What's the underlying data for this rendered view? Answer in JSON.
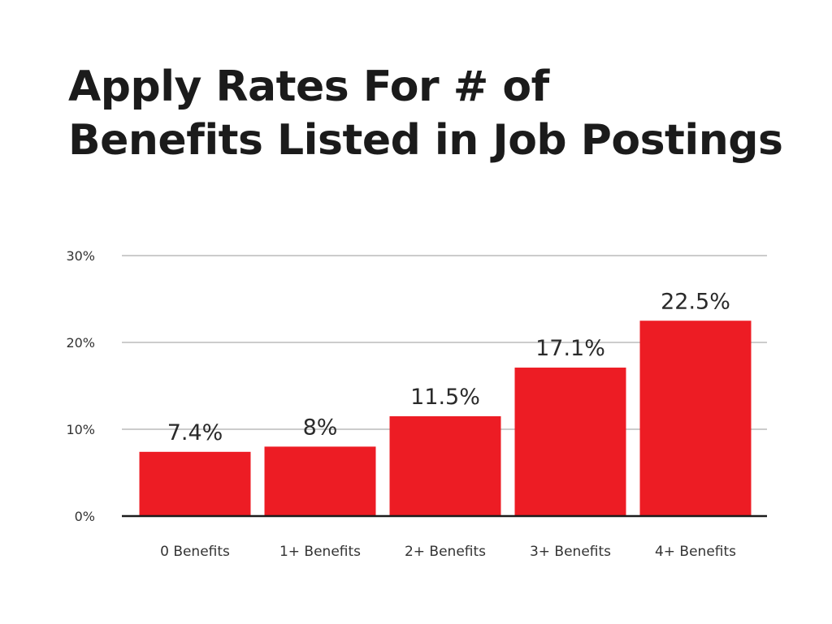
{
  "chart_data": {
    "type": "bar",
    "title_lines": [
      "Apply Rates For # of",
      "Benefits Listed in Job Postings"
    ],
    "categories": [
      "0 Benefits",
      "1+ Benefits",
      "2+ Benefits",
      "3+ Benefits",
      "4+ Benefits"
    ],
    "values": [
      7.4,
      8,
      11.5,
      17.1,
      22.5
    ],
    "data_labels": [
      "7.4%",
      "8%",
      "11.5%",
      "17.1%",
      "22.5%"
    ],
    "ylim": [
      0,
      30
    ],
    "yticks": [
      0,
      10,
      20,
      30
    ],
    "ytick_labels": [
      "0%",
      "10%",
      "20%",
      "30%"
    ],
    "xlabel": "",
    "ylabel": "",
    "grid": true,
    "legend": "none",
    "bar_color": "#ed1c24",
    "grid_color": "#cccccc",
    "axis_color": "#1b1b1b"
  }
}
